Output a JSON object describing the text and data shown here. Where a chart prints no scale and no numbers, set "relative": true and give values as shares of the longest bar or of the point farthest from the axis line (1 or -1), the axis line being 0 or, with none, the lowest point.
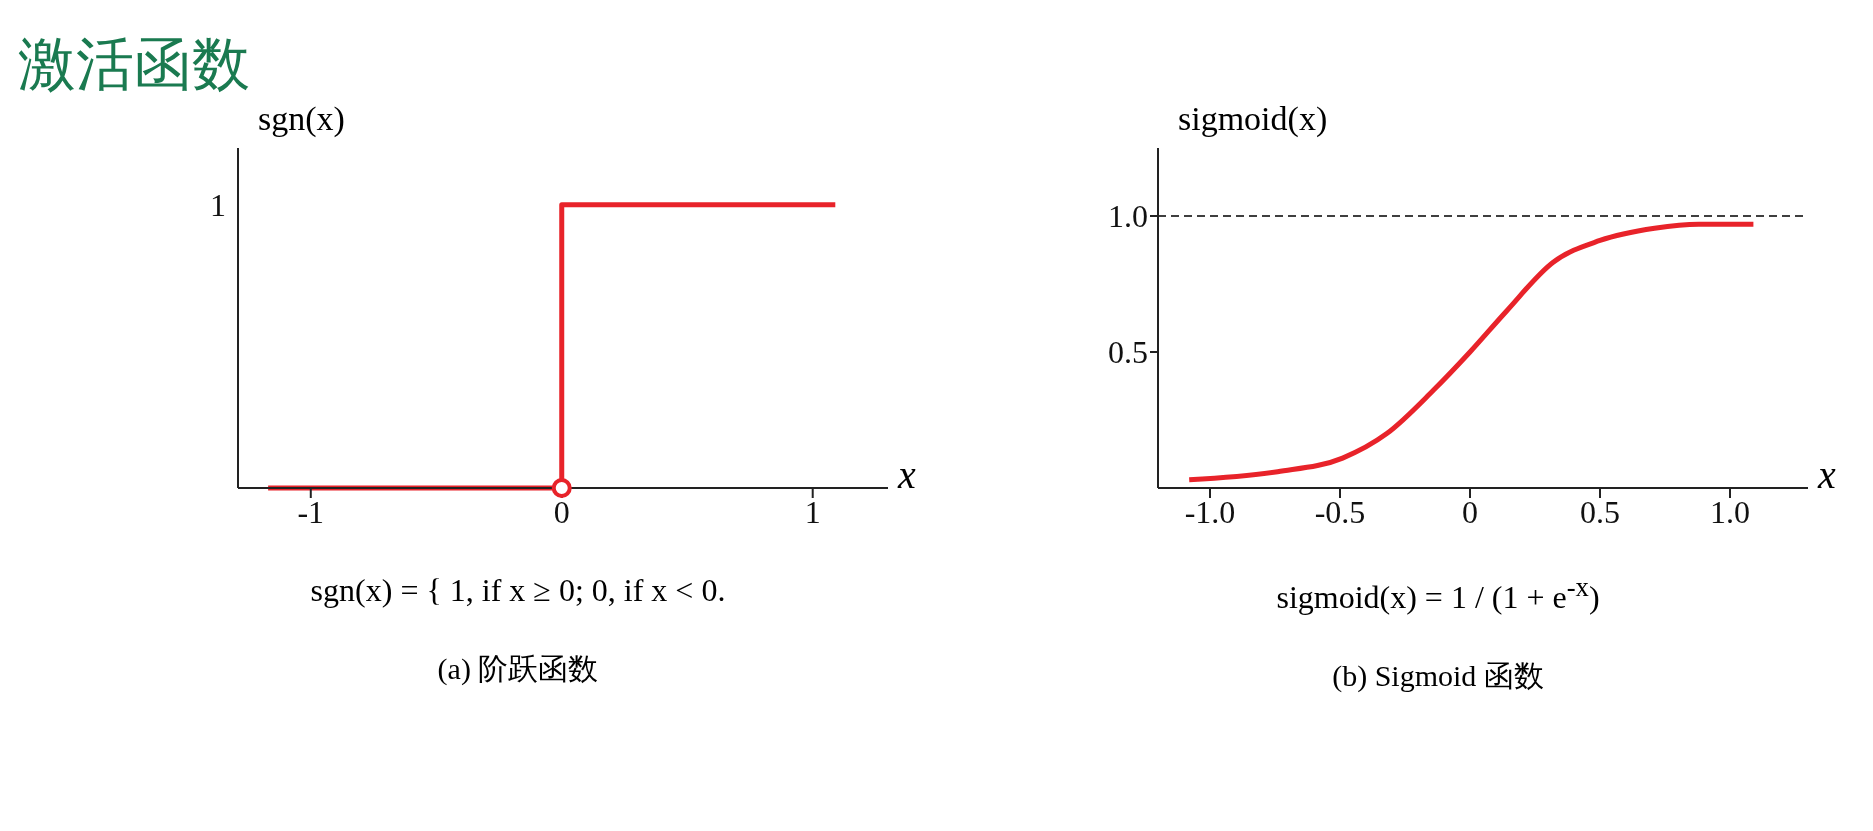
{
  "chart_data": [
    {
      "type": "step",
      "title": "激活函数",
      "ylabel": "sgn(x)",
      "xlabel": "x",
      "relative": true,
      "xlim": [
        -1.29,
        1.3
      ],
      "xticks": [
        -1,
        0,
        1
      ],
      "series": [
        {
          "color": "#e8232a",
          "x": [
            -1.17,
            0,
            1.09
          ],
          "values": [
            0,
            1,
            1
          ]
        }
      ],
      "annotations": [
        "1",
        "sgn(x) = { 1,  if x ≥ 0;  0,  if x < 0.",
        "(a) 阶跃函数"
      ]
    },
    {
      "type": "line",
      "ylabel": "sigmoid(x)",
      "xlabel": "x",
      "xlim": [
        -1.2,
        1.3
      ],
      "ylim": [
        0,
        1.25
      ],
      "xticks": [
        {
          "value": -1,
          "label": "-1.0"
        },
        -0.5,
        0,
        0.5,
        {
          "value": 1,
          "label": "1.0"
        }
      ],
      "yticks": [
        0.5,
        {
          "value": 1,
          "label": "1.0"
        }
      ],
      "marker": "none",
      "ref_lines": [
        {
          "axis": "y",
          "value": 1,
          "color": "#000000",
          "line_style": "dashed"
        }
      ],
      "series": [
        {
          "color": "#e8232a",
          "x": [
            -1.08,
            -0.74,
            -0.49,
            -0.32,
            -0.14,
            0,
            0.14,
            0.32,
            0.5,
            0.71,
            0.88,
            1.09
          ],
          "values": [
            0.03,
            0.06,
            0.11,
            0.2,
            0.36,
            0.5,
            0.65,
            0.83,
            0.91,
            0.955,
            0.97,
            0.97
          ]
        }
      ],
      "annotations": [
        "sigmoid(x) = 1 / (1 + e$^{-x}$)",
        "(b) Sigmoid 函数"
      ]
    }
  ]
}
